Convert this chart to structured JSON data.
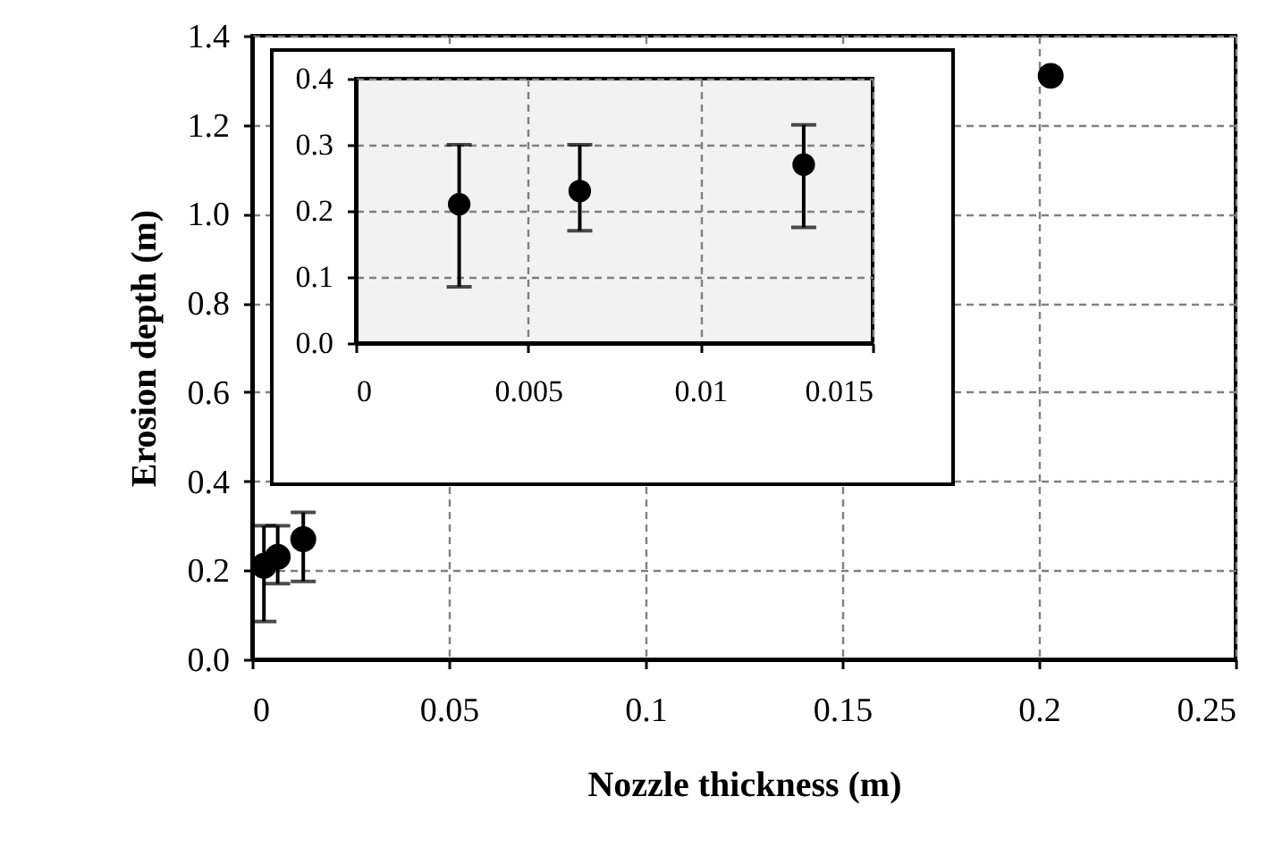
{
  "chart_data": [
    {
      "type": "scatter",
      "xlabel": "Nozzle thickness (m)",
      "ylabel": "Erosion depth (m)",
      "x": [
        0.003,
        0.0065,
        0.013,
        0.203
      ],
      "values": [
        0.21,
        0.23,
        0.27,
        1.31
      ],
      "errors": [
        [
          0.085,
          0.3
        ],
        [
          0.17,
          0.3
        ],
        [
          0.175,
          0.33
        ],
        null
      ],
      "color": "#000000",
      "marker": "circle",
      "grid": true,
      "xlim": [
        0,
        0.25
      ],
      "xticks": [
        0,
        0.05,
        0.1,
        0.15,
        0.2,
        0.25
      ],
      "ylim": [
        0,
        1.4
      ],
      "yticks": [
        {
          "value": 0,
          "label": "0.0"
        },
        {
          "value": 0.2,
          "label": "0.2"
        },
        {
          "value": 0.4,
          "label": "0.4"
        },
        {
          "value": 0.6,
          "label": "0.6"
        },
        {
          "value": 0.8,
          "label": "0.8"
        },
        {
          "value": 1,
          "label": "1.0"
        },
        {
          "value": 1.2,
          "label": "1.2"
        },
        {
          "value": 1.4,
          "label": "1.4"
        }
      ]
    },
    {
      "type": "scatter",
      "x": [
        0.003,
        0.0065,
        0.013
      ],
      "values": [
        0.21,
        0.23,
        0.27
      ],
      "errors": [
        [
          0.085,
          0.3
        ],
        [
          0.17,
          0.3
        ],
        [
          0.175,
          0.33
        ]
      ],
      "color": "#000000",
      "marker": "circle",
      "grid": true,
      "xlim": [
        0,
        0.015
      ],
      "xticks": [
        0,
        0.005,
        0.01,
        0.015
      ],
      "ylim": [
        0,
        0.4
      ],
      "yticks": [
        {
          "value": 0,
          "label": "0.0"
        },
        {
          "value": 0.1,
          "label": "0.1"
        },
        {
          "value": 0.2,
          "label": "0.2"
        },
        {
          "value": 0.3,
          "label": "0.3"
        },
        {
          "value": 0.4,
          "label": "0.4"
        }
      ]
    }
  ]
}
